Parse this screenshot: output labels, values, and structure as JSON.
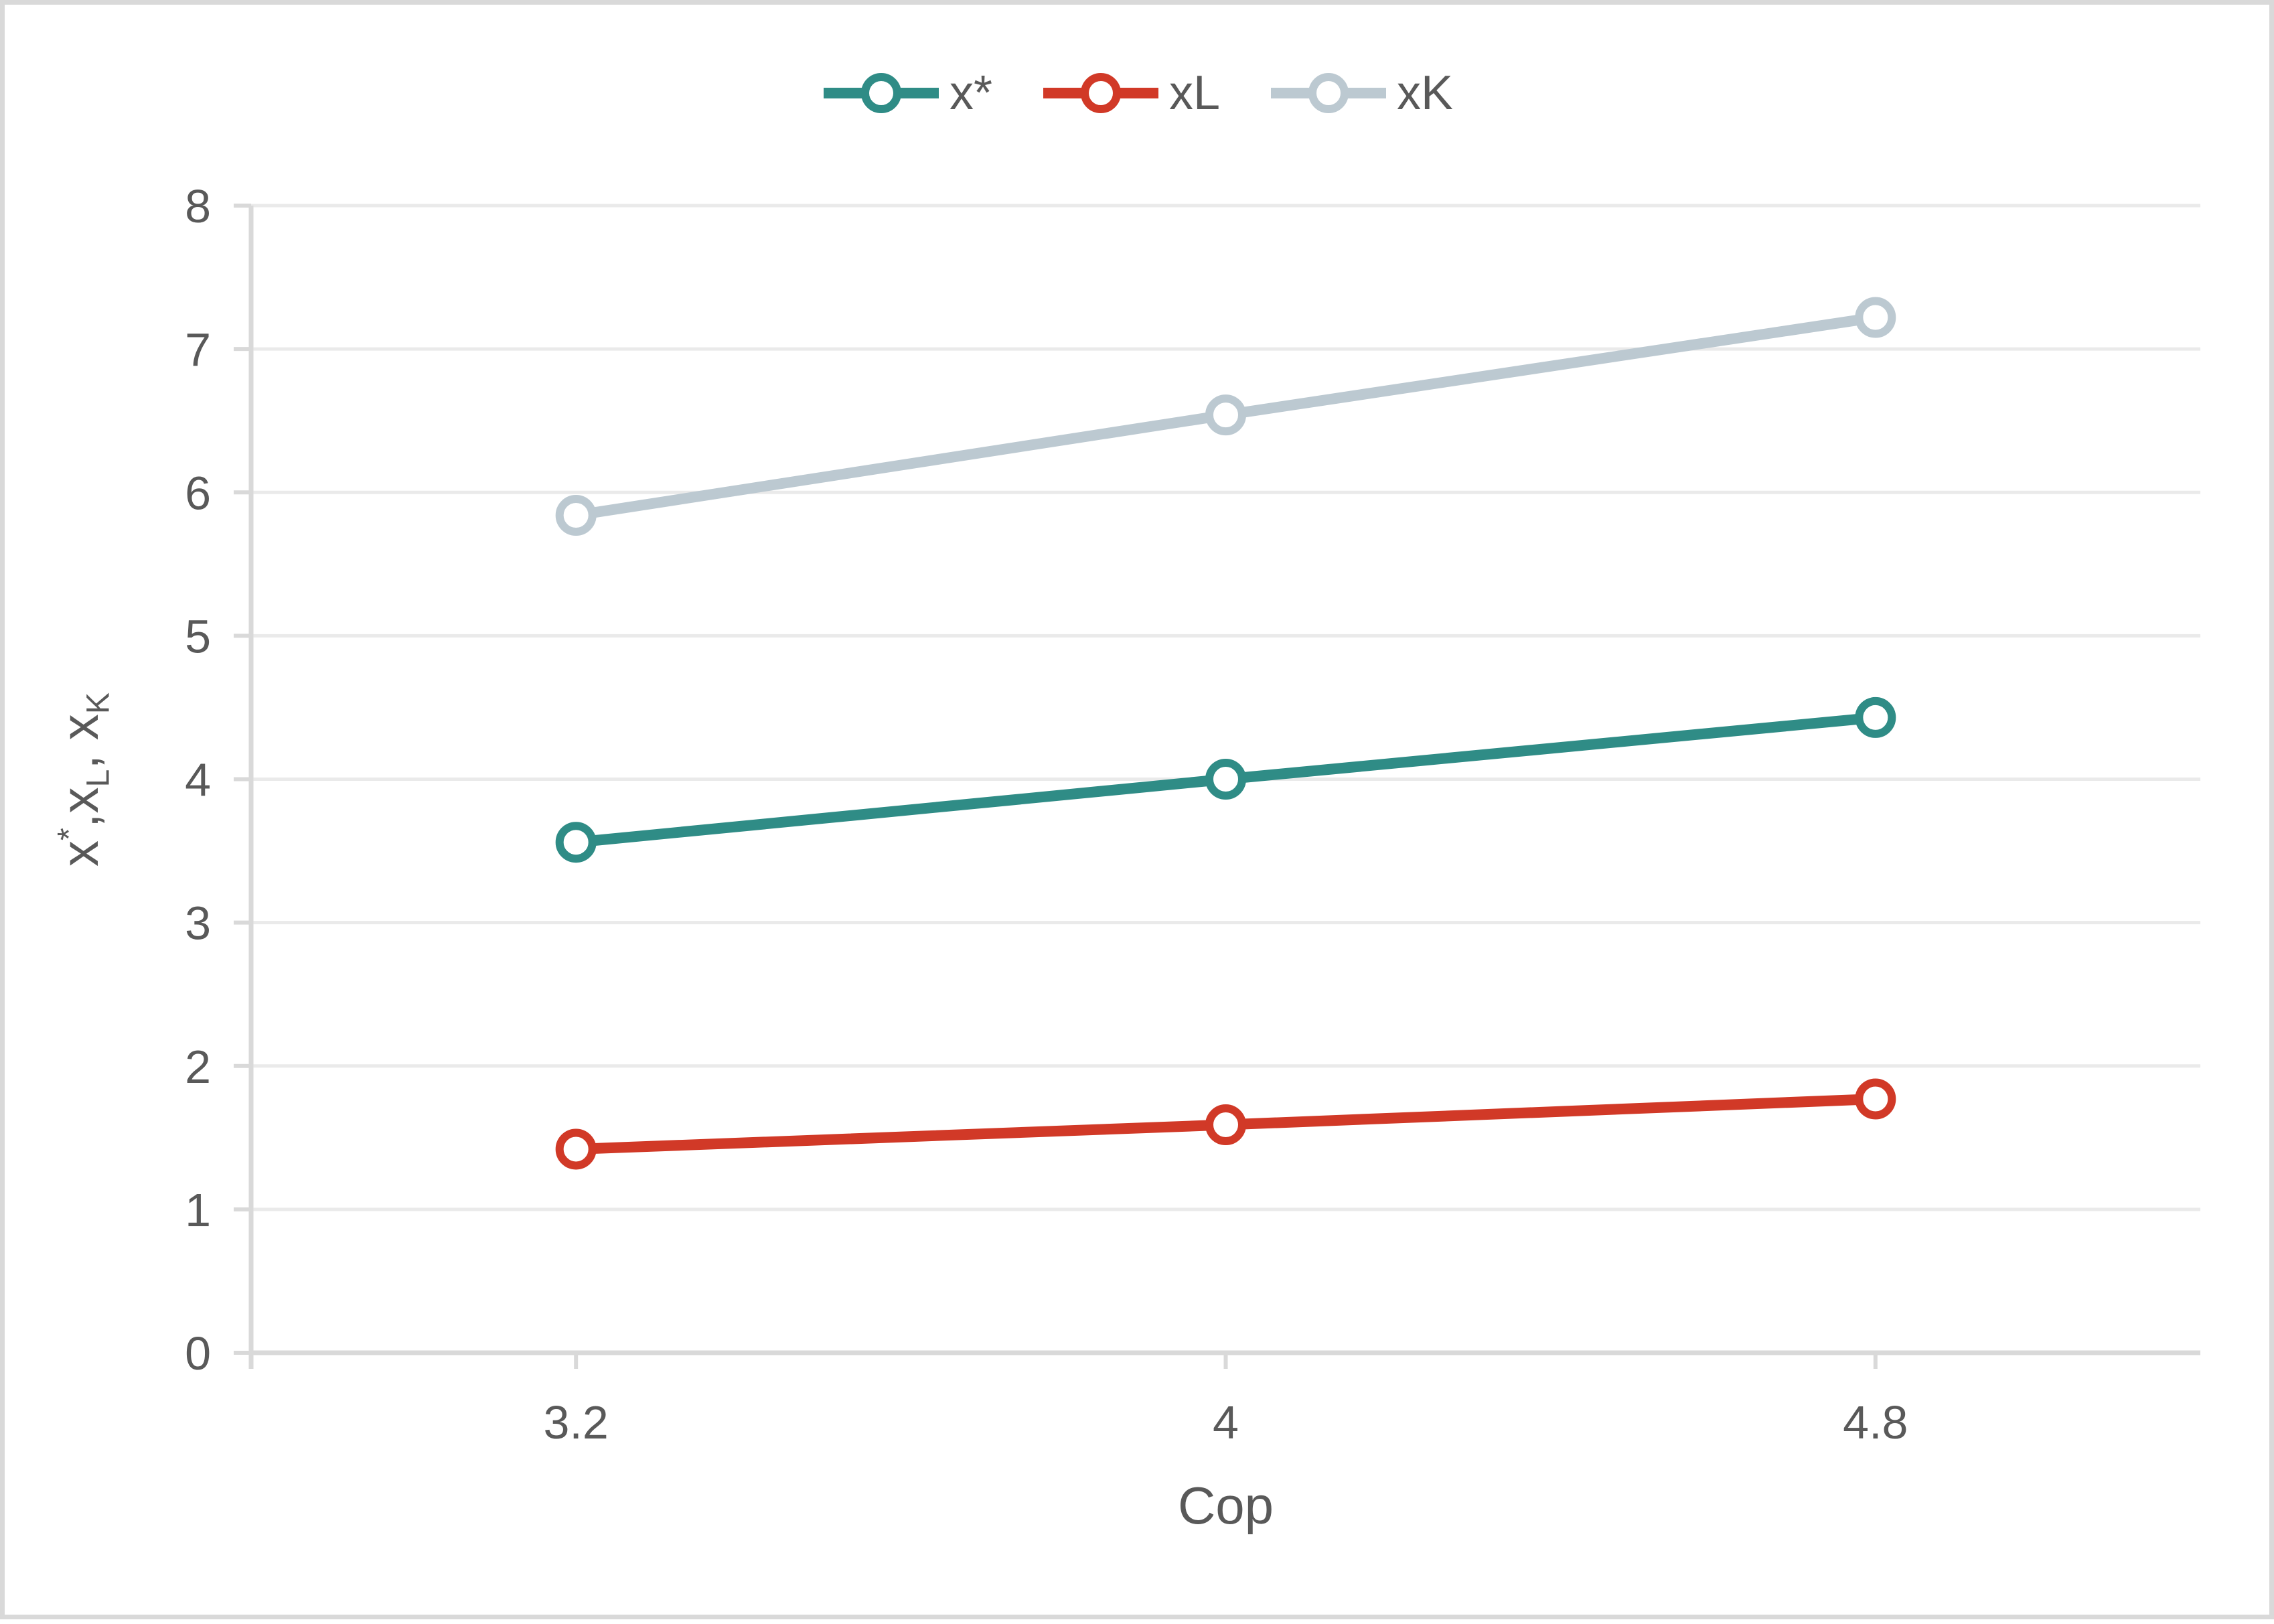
{
  "chart_data": {
    "type": "line",
    "x_categories": [
      "3.2",
      "4",
      "4.8"
    ],
    "series": [
      {
        "name": "x*",
        "values": [
          3.56,
          4.0,
          4.43
        ],
        "color": "#2F8C86"
      },
      {
        "name": "xL",
        "values": [
          1.42,
          1.59,
          1.77
        ],
        "color": "#D13927"
      },
      {
        "name": "xK",
        "values": [
          5.84,
          6.54,
          7.22
        ],
        "color": "#BCC9D1"
      }
    ],
    "title": "",
    "xlabel": "Cop",
    "ylabel": "x*,xL, xK",
    "ylabel_parts": [
      {
        "text": "x",
        "style": "normal"
      },
      {
        "text": "*",
        "style": "super"
      },
      {
        "text": ",x",
        "style": "normal"
      },
      {
        "text": "L",
        "style": "sub"
      },
      {
        "text": ", x",
        "style": "normal"
      },
      {
        "text": "K",
        "style": "sub"
      }
    ],
    "ylim": [
      0,
      8
    ],
    "yticks": [
      0,
      1,
      2,
      3,
      4,
      5,
      6,
      7,
      8
    ],
    "grid": "horizontal",
    "legend_position": "top",
    "marker": "open-circle"
  },
  "styles": {
    "background": "#FFFFFF",
    "border_color": "#D9D9D9",
    "gridline_color": "#EAEAEA",
    "axis_line_color": "#D9D9D9",
    "text_color": "#595959",
    "marker_fill": "#FFFFFF"
  }
}
